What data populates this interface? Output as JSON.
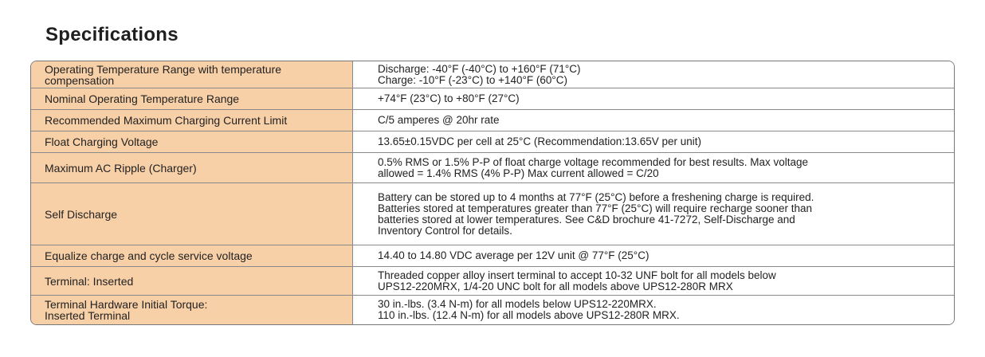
{
  "title": "Specifications",
  "rows": [
    {
      "label": "Operating Temperature Range with temperature\ncompensation",
      "value": "Discharge: -40°F (-40°C) to +160°F (71°C)\nCharge: -10°F (-23°C) to +140°F (60°C)"
    },
    {
      "label": "Nominal Operating Temperature Range",
      "value": "+74°F (23°C) to +80°F (27°C)"
    },
    {
      "label": "Recommended Maximum Charging Current Limit",
      "value": "C/5 amperes @ 20hr rate"
    },
    {
      "label": "Float Charging Voltage",
      "value": "13.65±0.15VDC per cell at 25°C (Recommendation:13.65V per unit)"
    },
    {
      "label": "Maximum AC Ripple (Charger)",
      "value": "0.5% RMS or 1.5% P-P of float charge voltage recommended for best results. Max voltage\nallowed = 1.4% RMS (4% P-P) Max current allowed = C/20"
    },
    {
      "label": "Self Discharge",
      "value": "Battery can be stored up to 4 months at 77°F (25°C) before a freshening charge is required.\nBatteries stored at temperatures greater than 77°F (25°C) will require recharge sooner than\nbatteries stored at lower temperatures. See C&D brochure 41-7272, Self-Discharge and\nInventory Control for details."
    },
    {
      "label": "Equalize charge and cycle service voltage",
      "value": "14.40 to 14.80 VDC average per 12V unit @ 77°F (25°C)"
    },
    {
      "label": "Terminal: Inserted",
      "value": "Threaded copper alloy insert terminal to accept 10-32 UNF bolt for all models below\nUPS12-220MRX,  1/4-20 UNC bolt for all models above UPS12-280R MRX"
    },
    {
      "label": "Terminal Hardware Initial Torque:\nInserted Terminal",
      "value": "30 in.-lbs. (3.4 N-m) for all models below UPS12-220MRX.\n110 in.-lbs. (12.4 N-m) for all models above UPS12-280R MRX."
    }
  ],
  "colors": {
    "label_background": "#f8d0a7",
    "border": "#8a8a8a"
  }
}
